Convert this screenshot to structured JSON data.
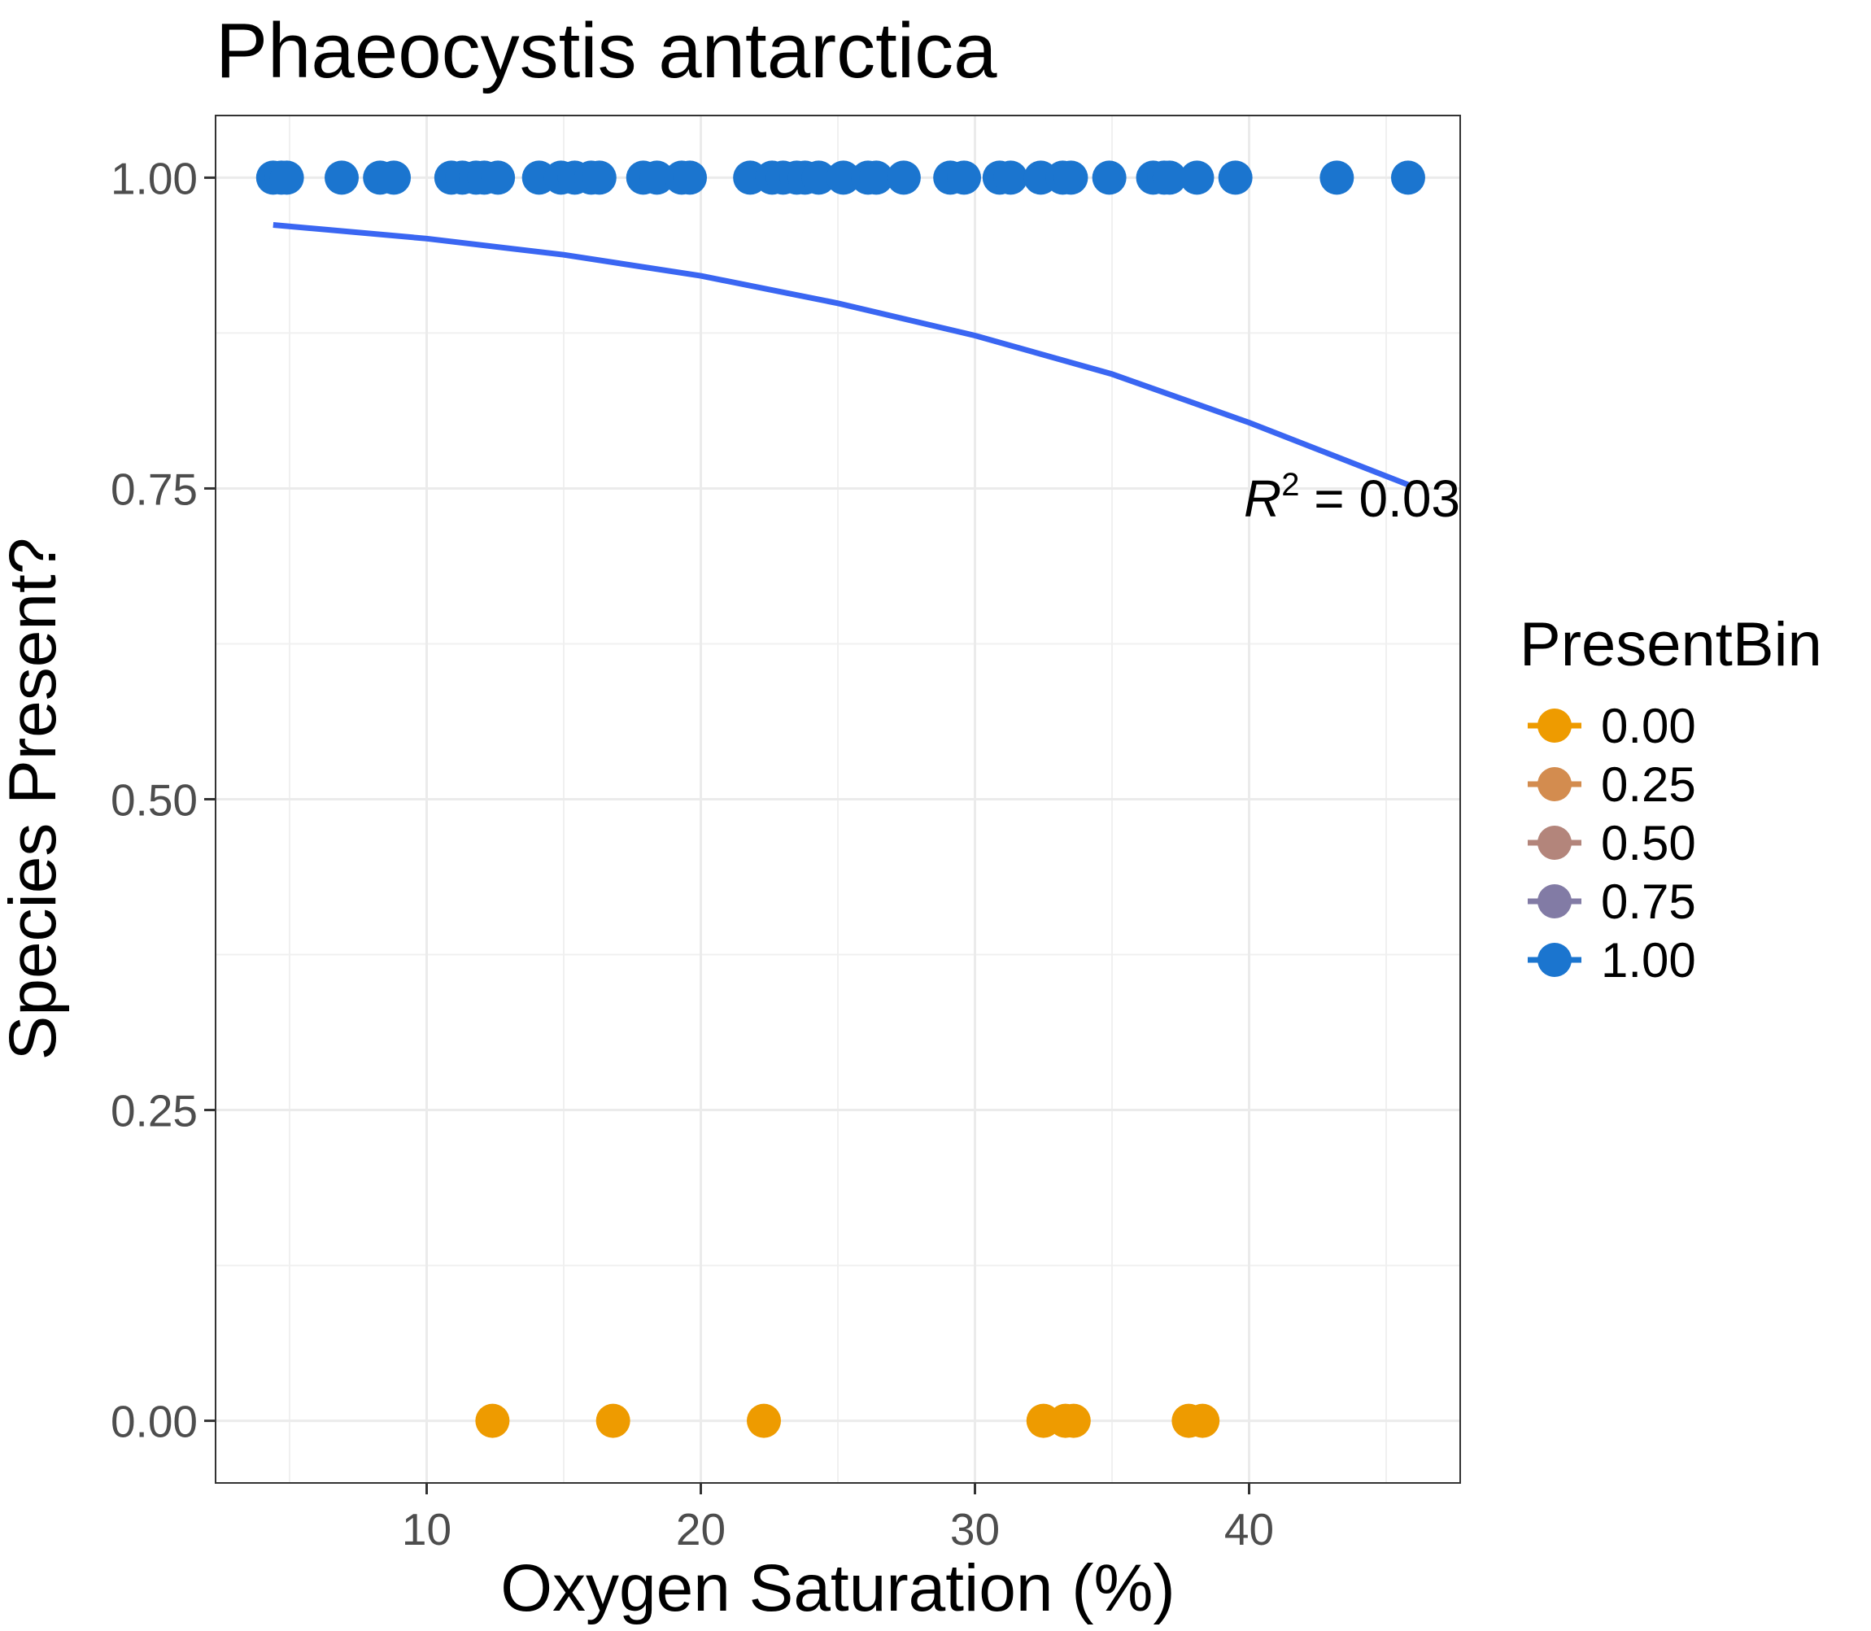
{
  "chart_data": {
    "type": "scatter",
    "title": "Phaeocystis antarctica",
    "xlabel": "Oxygen Saturation (%)",
    "ylabel": "Species Present?",
    "xlim": [
      2.3,
      47.7
    ],
    "ylim": [
      -0.05,
      1.05
    ],
    "x_ticks": [
      10,
      20,
      30,
      40
    ],
    "y_ticks": [
      0.0,
      0.25,
      0.5,
      0.75,
      1.0
    ],
    "x_tick_labels": [
      "10",
      "20",
      "30",
      "40"
    ],
    "y_tick_labels": [
      "0.00",
      "0.25",
      "0.50",
      "0.75",
      "1.00"
    ],
    "grid": true,
    "legend": {
      "title": "PresentBin",
      "placement": "right",
      "entries": [
        {
          "label": "0.00",
          "color": "#EE9B00"
        },
        {
          "label": "0.25",
          "color": "#D38C4F"
        },
        {
          "label": "0.50",
          "color": "#B3857B"
        },
        {
          "label": "0.75",
          "color": "#827BA5"
        },
        {
          "label": "1.00",
          "color": "#1B75CF"
        }
      ]
    },
    "series": [
      {
        "name": "1.00",
        "color": "#1B75CF",
        "points": [
          [
            4.4,
            1
          ],
          [
            4.7,
            1
          ],
          [
            4.9,
            1
          ],
          [
            6.9,
            1
          ],
          [
            8.3,
            1
          ],
          [
            8.8,
            1
          ],
          [
            10.9,
            1
          ],
          [
            11.3,
            1
          ],
          [
            11.8,
            1
          ],
          [
            12.1,
            1
          ],
          [
            12.6,
            1
          ],
          [
            14.1,
            1
          ],
          [
            14.9,
            1
          ],
          [
            15.4,
            1
          ],
          [
            16.0,
            1
          ],
          [
            16.3,
            1
          ],
          [
            17.9,
            1
          ],
          [
            18.4,
            1
          ],
          [
            19.3,
            1
          ],
          [
            19.6,
            1
          ],
          [
            21.8,
            1
          ],
          [
            22.6,
            1
          ],
          [
            23.0,
            1
          ],
          [
            23.5,
            1
          ],
          [
            23.8,
            1
          ],
          [
            24.3,
            1
          ],
          [
            25.2,
            1
          ],
          [
            26.1,
            1
          ],
          [
            26.4,
            1
          ],
          [
            27.4,
            1
          ],
          [
            29.1,
            1
          ],
          [
            29.6,
            1
          ],
          [
            30.9,
            1
          ],
          [
            31.3,
            1
          ],
          [
            32.4,
            1
          ],
          [
            33.2,
            1
          ],
          [
            33.5,
            1
          ],
          [
            34.9,
            1
          ],
          [
            36.5,
            1
          ],
          [
            36.9,
            1
          ],
          [
            37.1,
            1
          ],
          [
            38.1,
            1
          ],
          [
            39.5,
            1
          ],
          [
            43.2,
            1
          ],
          [
            45.8,
            1
          ]
        ]
      },
      {
        "name": "0.00",
        "color": "#EE9B00",
        "points": [
          [
            12.4,
            0
          ],
          [
            16.8,
            0
          ],
          [
            22.3,
            0
          ],
          [
            32.5,
            0
          ],
          [
            33.3,
            0
          ],
          [
            33.6,
            0
          ],
          [
            37.8,
            0
          ],
          [
            38.3,
            0
          ]
        ]
      }
    ],
    "fit_line": {
      "color": "#3A66F2",
      "points": [
        [
          4.4,
          0.962
        ],
        [
          10,
          0.951
        ],
        [
          15,
          0.938
        ],
        [
          20,
          0.921
        ],
        [
          25,
          0.899
        ],
        [
          30,
          0.873
        ],
        [
          35,
          0.842
        ],
        [
          40,
          0.803
        ],
        [
          45.8,
          0.753
        ]
      ]
    },
    "annotation": {
      "prefix": "R",
      "superscript": "2",
      "suffix": " = 0.03",
      "x": 45.8,
      "y": 0.75
    }
  }
}
